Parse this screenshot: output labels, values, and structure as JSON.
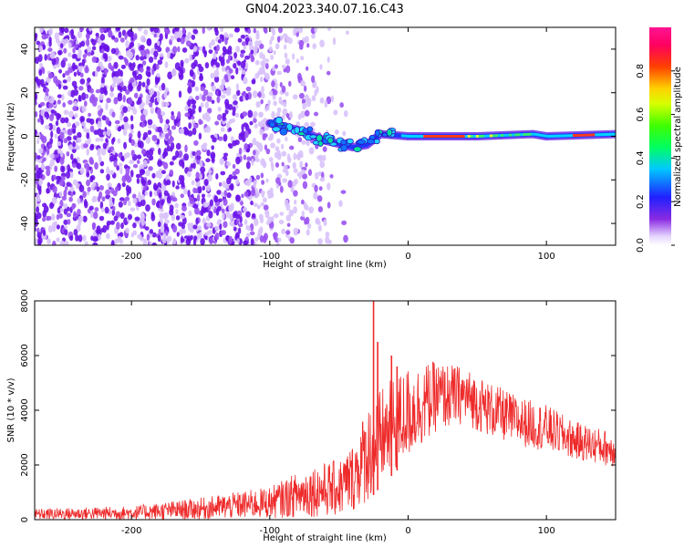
{
  "title": "GN04.2023.340.07.16.C43",
  "colors": {
    "snr_line": "#ee2a2a",
    "spectrogram_low": "#d9c7ff",
    "spectrogram_mid": "#7a1cf0",
    "spectrogram_high": "#ff1493"
  },
  "chart_data": [
    {
      "type": "heatmap",
      "title": "GN04.2023.340.07.16.C43",
      "xlabel": "Height of straight line (km)",
      "ylabel": "Frequency (Hz)",
      "xlim": [
        -270,
        150
      ],
      "ylim": [
        -50,
        50
      ],
      "xticks": [
        -200,
        -100,
        0,
        100
      ],
      "yticks": [
        -40,
        -20,
        0,
        20,
        40
      ],
      "grid": false,
      "colorbar": {
        "label": "Normalized spectral amplitude",
        "range": [
          0.0,
          1.0
        ],
        "ticks": [
          "0.0",
          "0.2",
          "0.4",
          "0.6",
          "0.8"
        ],
        "colormap": "rainbow (violet-blue-cyan-green-yellow-red-magenta)"
      },
      "features": {
        "noise_region_x": [
          -270,
          -50
        ],
        "signal_track": [
          {
            "x": -100,
            "y": 6
          },
          {
            "x": -80,
            "y": 3
          },
          {
            "x": -60,
            "y": -2
          },
          {
            "x": -40,
            "y": -5
          },
          {
            "x": -30,
            "y": -4
          },
          {
            "x": -20,
            "y": 1
          },
          {
            "x": 0,
            "y": 0
          },
          {
            "x": 50,
            "y": 0
          },
          {
            "x": 90,
            "y": 1
          },
          {
            "x": 100,
            "y": 0
          },
          {
            "x": 150,
            "y": 1
          }
        ]
      }
    },
    {
      "type": "line",
      "xlabel": "Height of straight line (km)",
      "ylabel": "SNR (10 * v/v)",
      "xlim": [
        -270,
        150
      ],
      "ylim": [
        0,
        8000
      ],
      "xticks": [
        -200,
        -100,
        0,
        100
      ],
      "yticks": [
        0,
        2000,
        4000,
        6000,
        8000
      ],
      "grid": false,
      "series": [
        {
          "color": "#ee2a2a",
          "envelope": [
            {
              "x": -270,
              "low": 0,
              "high": 400
            },
            {
              "x": -200,
              "low": 0,
              "high": 500
            },
            {
              "x": -150,
              "low": 0,
              "high": 800
            },
            {
              "x": -100,
              "low": 50,
              "high": 1200
            },
            {
              "x": -70,
              "low": 100,
              "high": 2000
            },
            {
              "x": -50,
              "low": 100,
              "high": 2200
            },
            {
              "x": -40,
              "low": 300,
              "high": 2800
            },
            {
              "x": -30,
              "low": 600,
              "high": 4200
            },
            {
              "x": -20,
              "low": 1200,
              "high": 4800
            },
            {
              "x": 0,
              "low": 2200,
              "high": 5600
            },
            {
              "x": 20,
              "low": 3200,
              "high": 5800
            },
            {
              "x": 40,
              "low": 3500,
              "high": 5600
            },
            {
              "x": 60,
              "low": 3000,
              "high": 5000
            },
            {
              "x": 80,
              "low": 2700,
              "high": 4500
            },
            {
              "x": 100,
              "low": 2500,
              "high": 4200
            },
            {
              "x": 120,
              "low": 2200,
              "high": 3600
            },
            {
              "x": 150,
              "low": 1900,
              "high": 3200
            }
          ],
          "spikes": [
            {
              "x": -25,
              "value": 8000
            },
            {
              "x": -22,
              "value": 6500
            },
            {
              "x": -12,
              "value": 6000
            },
            {
              "x": -8,
              "value": 5600
            }
          ]
        }
      ]
    }
  ]
}
